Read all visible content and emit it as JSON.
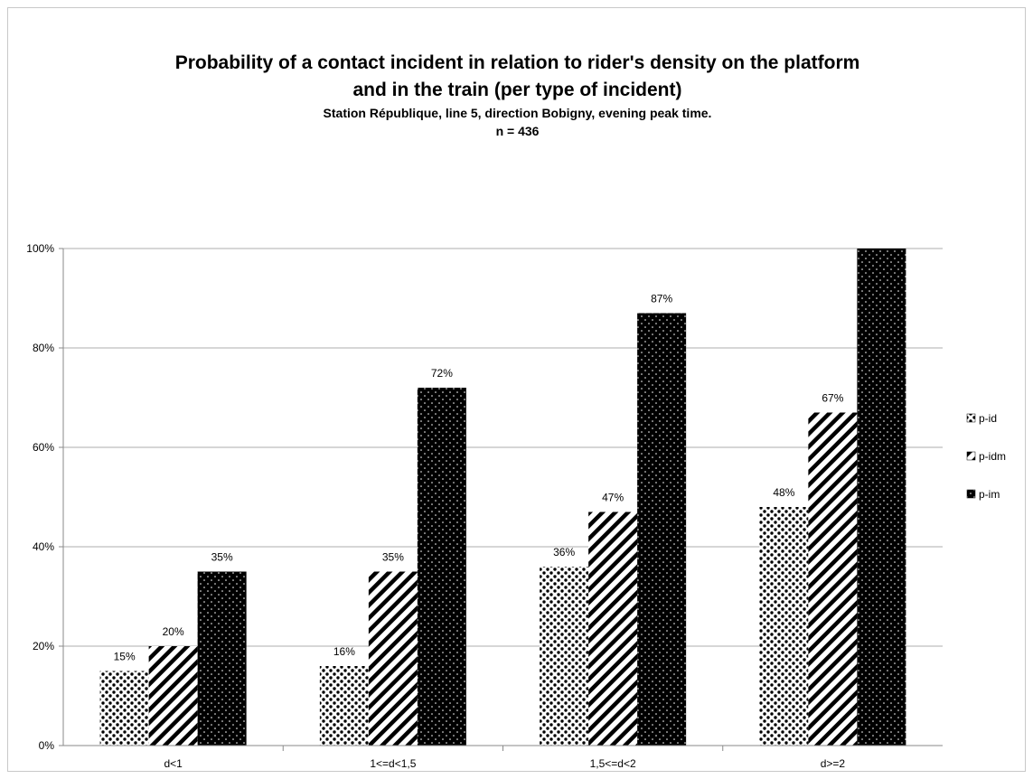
{
  "chart_data": {
    "type": "bar",
    "title_lines": [
      "Probability of a contact incident in relation to rider's density on the platform",
      "and in the train (per type of incident)"
    ],
    "subtitle": "Station République, line 5, direction Bobigny, evening peak time.",
    "n_label": "n = 436",
    "categories": [
      "d<1",
      "1<=d<1,5",
      "1,5<=d<2",
      "d>=2"
    ],
    "series": [
      {
        "name": "p-id",
        "pattern": "dots-large",
        "values": [
          15,
          16,
          36,
          48
        ],
        "labels": [
          "15%",
          "16%",
          "36%",
          "48%"
        ]
      },
      {
        "name": "p-idm",
        "pattern": "diagonal-stripes",
        "values": [
          20,
          35,
          47,
          67
        ],
        "labels": [
          "20%",
          "35%",
          "47%",
          "67%"
        ]
      },
      {
        "name": "p-im",
        "pattern": "dots-on-black",
        "values": [
          35,
          72,
          87,
          100
        ],
        "labels": [
          "35%",
          "72%",
          "87%",
          ""
        ]
      }
    ],
    "y_ticks": [
      "0%",
      "20%",
      "40%",
      "60%",
      "80%",
      "100%"
    ],
    "ylim": [
      0,
      100
    ],
    "grid": true,
    "legend_position": "right"
  }
}
